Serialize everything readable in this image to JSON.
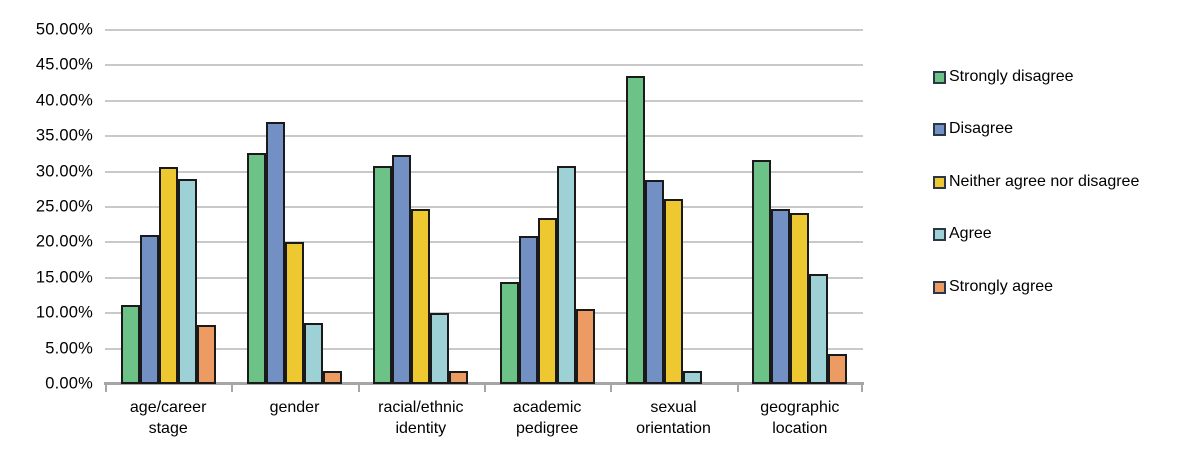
{
  "chart_data": {
    "type": "bar",
    "title": "",
    "xlabel": "",
    "ylabel": "",
    "categories": [
      "age/career\nstage",
      "gender",
      "racial/ethnic\nidentity",
      "academic\npedigree",
      "sexual\norientation",
      "geographic\nlocation"
    ],
    "series": [
      {
        "name": "Strongly disagree",
        "color": "#6cc287",
        "values": [
          11.1,
          32.6,
          30.8,
          14.4,
          43.5,
          31.7
        ]
      },
      {
        "name": "Disagree",
        "color": "#7290c4",
        "values": [
          21.1,
          37.0,
          32.3,
          20.9,
          28.8,
          24.7
        ]
      },
      {
        "name": "Neither agree nor disagree",
        "color": "#edc831",
        "values": [
          30.6,
          20.0,
          24.7,
          23.5,
          26.1,
          24.1
        ]
      },
      {
        "name": "Agree",
        "color": "#9dd1d5",
        "values": [
          28.9,
          8.6,
          10.1,
          30.8,
          1.9,
          15.5
        ]
      },
      {
        "name": "Strongly agree",
        "color": "#ec9b63",
        "values": [
          8.3,
          1.9,
          1.9,
          10.6,
          0.0,
          4.2
        ]
      }
    ],
    "ylim": [
      0,
      50
    ],
    "y_tick_step": 5,
    "y_tick_labels": [
      "0.00%",
      "5.00%",
      "10.00%",
      "15.00%",
      "20.00%",
      "25.00%",
      "30.00%",
      "35.00%",
      "40.00%",
      "45.00%",
      "50.00%"
    ],
    "grid": true,
    "legend_position": "right",
    "colors": {
      "bar_border": "#1a1a1a",
      "gridline": "#c9c9c9",
      "axis": "#a6a6a6",
      "text": "#000000",
      "background": "#ffffff"
    }
  }
}
